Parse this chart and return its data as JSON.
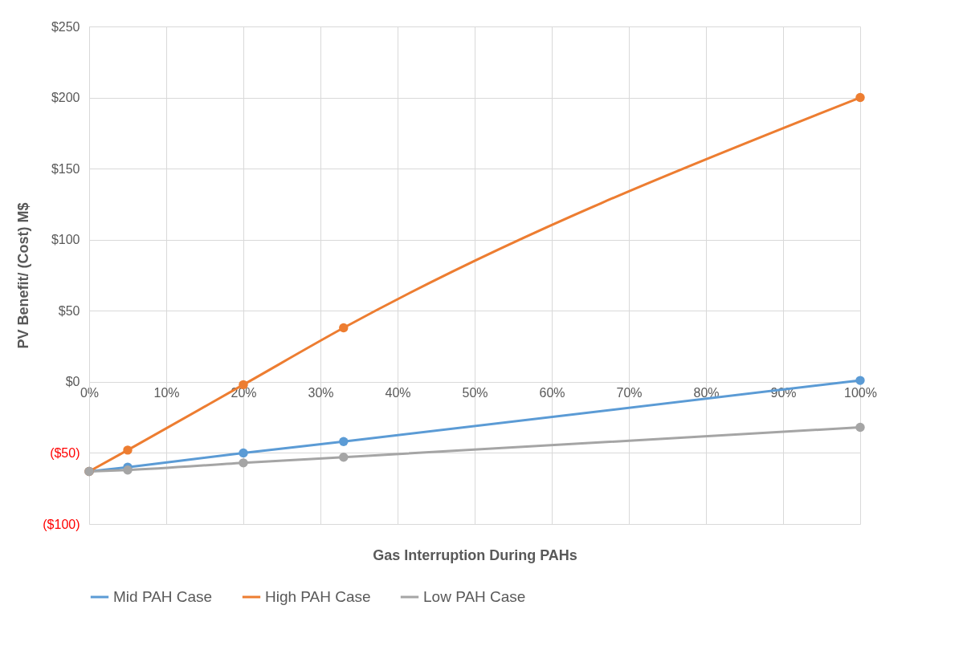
{
  "chart_data": {
    "type": "line",
    "xlabel": "Gas Interruption During PAHs",
    "ylabel": "PV Benefit/ (Cost) M$",
    "x": [
      0,
      5,
      20,
      33,
      100
    ],
    "series": [
      {
        "name": "Mid PAH Case",
        "color": "#5b9bd5",
        "values": [
          -63,
          -60,
          -50,
          -42,
          1
        ]
      },
      {
        "name": "High PAH Case",
        "color": "#ed7d31",
        "values": [
          -63,
          -48,
          -2,
          38,
          200
        ]
      },
      {
        "name": "Low PAH Case",
        "color": "#a5a5a5",
        "values": [
          -63,
          -62,
          -57,
          -53,
          -32
        ]
      }
    ],
    "xlim": [
      0,
      100
    ],
    "xticks": [
      {
        "value": 0,
        "label": "0%"
      },
      {
        "value": 10,
        "label": "10%"
      },
      {
        "value": 20,
        "label": "20%"
      },
      {
        "value": 30,
        "label": "30%"
      },
      {
        "value": 40,
        "label": "40%"
      },
      {
        "value": 50,
        "label": "50%"
      },
      {
        "value": 60,
        "label": "60%"
      },
      {
        "value": 70,
        "label": "70%"
      },
      {
        "value": 80,
        "label": "80%"
      },
      {
        "value": 90,
        "label": "90%"
      },
      {
        "value": 100,
        "label": "100%"
      }
    ],
    "ylim": [
      -100,
      250
    ],
    "yticks": [
      {
        "value": -100,
        "label": "($100)"
      },
      {
        "value": -50,
        "label": "($50)"
      },
      {
        "value": 0,
        "label": "$0"
      },
      {
        "value": 50,
        "label": "$50"
      },
      {
        "value": 100,
        "label": "$100"
      },
      {
        "value": 150,
        "label": "$150"
      },
      {
        "value": 200,
        "label": "$200"
      },
      {
        "value": 250,
        "label": "$250"
      }
    ],
    "grid": true,
    "legend": "bottom",
    "marker": "circle",
    "line_style": "solid"
  }
}
